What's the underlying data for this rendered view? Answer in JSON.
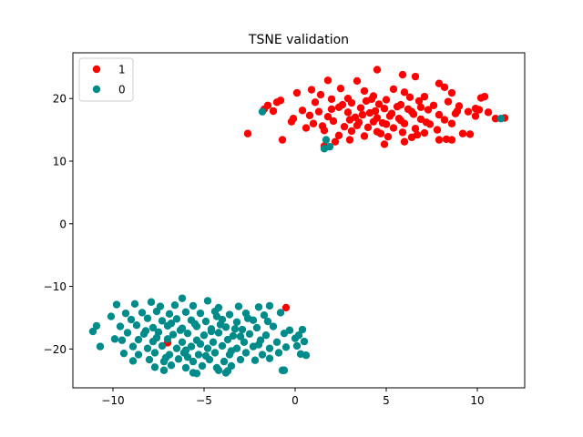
{
  "chart_data": {
    "type": "scatter",
    "title": "TSNE validation",
    "xlabel": "",
    "ylabel": "",
    "xlim": [
      -12.2,
      12.6
    ],
    "ylim": [
      -26.2,
      27.3
    ],
    "xticks": [
      -10,
      -5,
      0,
      5,
      10
    ],
    "yticks": [
      -20,
      -10,
      0,
      10,
      20
    ],
    "grid": false,
    "legend_position": "top-left",
    "series": [
      {
        "name": "1",
        "color": "#ff0000",
        "points": [
          [
            4.5,
            24.6
          ],
          [
            6.6,
            23.5
          ],
          [
            5.9,
            23.8
          ],
          [
            1.8,
            22.9
          ],
          [
            3.4,
            22.8
          ],
          [
            7.9,
            22.4
          ],
          [
            8.2,
            21.8
          ],
          [
            2.5,
            21.6
          ],
          [
            5.4,
            21.5
          ],
          [
            0.9,
            21.4
          ],
          [
            3.8,
            21.2
          ],
          [
            6.0,
            21.0
          ],
          [
            8.6,
            20.9
          ],
          [
            1.4,
            20.6
          ],
          [
            4.3,
            20.4
          ],
          [
            7.1,
            20.3
          ],
          [
            10.4,
            20.3
          ],
          [
            10.2,
            20.1
          ],
          [
            0.1,
            20.9
          ],
          [
            2.0,
            19.9
          ],
          [
            5.0,
            19.8
          ],
          [
            6.8,
            19.6
          ],
          [
            8.4,
            19.5
          ],
          [
            1.1,
            19.4
          ],
          [
            3.1,
            19.3
          ],
          [
            4.6,
            19.1
          ],
          [
            5.8,
            19.0
          ],
          [
            7.6,
            18.9
          ],
          [
            9.0,
            18.8
          ],
          [
            -0.8,
            19.7
          ],
          [
            -1.5,
            18.9
          ],
          [
            -1.0,
            19.4
          ],
          [
            2.4,
            18.6
          ],
          [
            3.6,
            18.5
          ],
          [
            4.9,
            18.4
          ],
          [
            6.2,
            18.3
          ],
          [
            7.3,
            18.2
          ],
          [
            8.9,
            18.0
          ],
          [
            10.1,
            18.2
          ],
          [
            10.6,
            17.8
          ],
          [
            1.3,
            17.9
          ],
          [
            2.9,
            17.8
          ],
          [
            4.1,
            17.7
          ],
          [
            5.3,
            17.6
          ],
          [
            6.5,
            17.5
          ],
          [
            7.9,
            17.4
          ],
          [
            9.5,
            17.9
          ],
          [
            0.4,
            18.1
          ],
          [
            -1.7,
            18.3
          ],
          [
            -1.2,
            18.0
          ],
          [
            11.5,
            16.9
          ],
          [
            11.0,
            16.8
          ],
          [
            9.9,
            17.2
          ],
          [
            1.8,
            17.1
          ],
          [
            3.3,
            17.0
          ],
          [
            4.5,
            16.9
          ],
          [
            5.7,
            16.8
          ],
          [
            6.9,
            16.7
          ],
          [
            8.2,
            16.6
          ],
          [
            -0.1,
            16.8
          ],
          [
            -0.2,
            16.3
          ],
          [
            0.8,
            17.3
          ],
          [
            2.1,
            16.4
          ],
          [
            3.5,
            16.2
          ],
          [
            4.8,
            16.1
          ],
          [
            6.0,
            16.0
          ],
          [
            7.4,
            15.9
          ],
          [
            8.6,
            16.0
          ],
          [
            1.5,
            15.6
          ],
          [
            2.7,
            15.5
          ],
          [
            4.0,
            15.4
          ],
          [
            5.4,
            15.3
          ],
          [
            6.6,
            15.2
          ],
          [
            7.8,
            15.0
          ],
          [
            0.6,
            15.3
          ],
          [
            1.6,
            14.9
          ],
          [
            3.1,
            14.8
          ],
          [
            4.5,
            14.7
          ],
          [
            5.9,
            14.6
          ],
          [
            7.1,
            14.5
          ],
          [
            9.2,
            14.4
          ],
          [
            9.6,
            14.3
          ],
          [
            -2.6,
            14.4
          ],
          [
            2.4,
            14.1
          ],
          [
            3.8,
            14.0
          ],
          [
            5.1,
            13.9
          ],
          [
            6.4,
            13.8
          ],
          [
            8.3,
            13.5
          ],
          [
            7.9,
            13.4
          ],
          [
            8.6,
            13.4
          ],
          [
            2.2,
            13.1
          ],
          [
            3.0,
            13.4
          ],
          [
            4.9,
            12.7
          ],
          [
            6.0,
            13.1
          ],
          [
            1.6,
            12.4
          ],
          [
            2.9,
            20.0
          ],
          [
            3.9,
            19.6
          ],
          [
            5.6,
            18.7
          ],
          [
            4.4,
            18.0
          ],
          [
            5.2,
            17.2
          ],
          [
            6.4,
            17.9
          ],
          [
            3.0,
            16.6
          ],
          [
            3.7,
            17.4
          ],
          [
            4.3,
            16.3
          ],
          [
            5.0,
            15.9
          ],
          [
            5.8,
            16.5
          ],
          [
            6.9,
            18.6
          ],
          [
            4.2,
            19.9
          ],
          [
            2.6,
            19.0
          ],
          [
            6.3,
            20.2
          ],
          [
            7.2,
            16.2
          ],
          [
            8.8,
            17.6
          ],
          [
            9.9,
            18.4
          ],
          [
            2.0,
            18.3
          ],
          [
            3.4,
            15.7
          ],
          [
            4.7,
            14.4
          ],
          [
            6.7,
            14.2
          ],
          [
            1.0,
            16.0
          ],
          [
            -0.7,
            13.4
          ],
          [
            -7.0,
            -19.0
          ],
          [
            -0.5,
            -13.4
          ]
        ]
      },
      {
        "name": "0",
        "color": "#008b8b",
        "points": [
          [
            -1.8,
            17.9
          ],
          [
            1.7,
            13.4
          ],
          [
            1.6,
            12.0
          ],
          [
            1.9,
            12.3
          ],
          [
            11.3,
            16.8
          ],
          [
            -6.2,
            -11.9
          ],
          [
            -4.8,
            -12.3
          ],
          [
            -9.8,
            -12.9
          ],
          [
            -8.8,
            -12.8
          ],
          [
            -7.9,
            -12.5
          ],
          [
            -7.4,
            -13.2
          ],
          [
            -6.6,
            -13.0
          ],
          [
            -5.6,
            -13.1
          ],
          [
            -4.2,
            -13.4
          ],
          [
            -3.1,
            -13.2
          ],
          [
            -2.0,
            -13.3
          ],
          [
            -1.4,
            -13.1
          ],
          [
            -10.1,
            -14.8
          ],
          [
            -9.3,
            -14.3
          ],
          [
            -8.4,
            -14.2
          ],
          [
            -7.6,
            -14.0
          ],
          [
            -6.9,
            -14.4
          ],
          [
            -6.0,
            -14.1
          ],
          [
            -5.2,
            -14.3
          ],
          [
            -4.4,
            -14.0
          ],
          [
            -3.6,
            -14.5
          ],
          [
            -2.7,
            -14.3
          ],
          [
            -1.7,
            -14.6
          ],
          [
            -0.8,
            -14.2
          ],
          [
            -9.0,
            -15.3
          ],
          [
            -8.1,
            -15.1
          ],
          [
            -7.3,
            -15.5
          ],
          [
            -6.5,
            -15.2
          ],
          [
            -5.7,
            -15.4
          ],
          [
            -4.9,
            -15.6
          ],
          [
            -4.0,
            -15.3
          ],
          [
            -3.2,
            -15.7
          ],
          [
            -2.3,
            -15.4
          ],
          [
            -1.5,
            -15.6
          ],
          [
            -10.9,
            -16.3
          ],
          [
            -9.6,
            -16.4
          ],
          [
            -8.7,
            -16.2
          ],
          [
            -7.8,
            -16.6
          ],
          [
            -7.0,
            -16.3
          ],
          [
            -6.2,
            -16.7
          ],
          [
            -5.4,
            -16.4
          ],
          [
            -4.6,
            -16.8
          ],
          [
            -3.8,
            -16.5
          ],
          [
            -2.9,
            -16.9
          ],
          [
            -2.1,
            -16.6
          ],
          [
            -1.2,
            -16.4
          ],
          [
            -0.3,
            -17.0
          ],
          [
            0.4,
            -16.9
          ],
          [
            -11.1,
            -17.2
          ],
          [
            -9.2,
            -17.4
          ],
          [
            -8.3,
            -17.6
          ],
          [
            -7.5,
            -17.3
          ],
          [
            -6.7,
            -17.7
          ],
          [
            -5.9,
            -17.5
          ],
          [
            -5.0,
            -17.8
          ],
          [
            -4.2,
            -17.4
          ],
          [
            -3.4,
            -17.9
          ],
          [
            -2.5,
            -17.6
          ],
          [
            -1.6,
            -17.8
          ],
          [
            -0.6,
            -17.5
          ],
          [
            0.2,
            -17.8
          ],
          [
            -9.9,
            -18.4
          ],
          [
            -9.5,
            -18.6
          ],
          [
            -8.6,
            -18.5
          ],
          [
            -7.8,
            -18.8
          ],
          [
            -7.0,
            -18.4
          ],
          [
            -6.2,
            -18.9
          ],
          [
            -5.4,
            -18.6
          ],
          [
            -4.5,
            -18.9
          ],
          [
            -3.7,
            -18.5
          ],
          [
            -2.8,
            -18.9
          ],
          [
            -1.9,
            -18.6
          ],
          [
            -1.0,
            -18.9
          ],
          [
            0.0,
            -18.3
          ],
          [
            0.5,
            -18.8
          ],
          [
            -10.7,
            -19.6
          ],
          [
            -8.9,
            -19.6
          ],
          [
            -8.1,
            -19.9
          ],
          [
            -7.3,
            -19.5
          ],
          [
            -6.5,
            -19.9
          ],
          [
            -5.7,
            -19.6
          ],
          [
            -4.8,
            -19.9
          ],
          [
            -4.0,
            -19.5
          ],
          [
            -3.2,
            -19.9
          ],
          [
            -2.3,
            -19.6
          ],
          [
            -1.4,
            -19.9
          ],
          [
            -0.5,
            -19.7
          ],
          [
            0.1,
            -19.5
          ],
          [
            -9.4,
            -20.7
          ],
          [
            -8.6,
            -20.9
          ],
          [
            -7.7,
            -20.6
          ],
          [
            -6.9,
            -20.9
          ],
          [
            -6.1,
            -20.6
          ],
          [
            -5.3,
            -20.9
          ],
          [
            -4.4,
            -20.6
          ],
          [
            -3.6,
            -20.9
          ],
          [
            -2.7,
            -20.6
          ],
          [
            -1.8,
            -20.9
          ],
          [
            -0.9,
            -20.6
          ],
          [
            0.3,
            -20.8
          ],
          [
            0.6,
            -21.0
          ],
          [
            -8.9,
            -21.9
          ],
          [
            -8.0,
            -21.7
          ],
          [
            -7.2,
            -22.0
          ],
          [
            -6.4,
            -21.6
          ],
          [
            -5.6,
            -22.0
          ],
          [
            -4.7,
            -21.7
          ],
          [
            -3.9,
            -22.0
          ],
          [
            -3.0,
            -21.7
          ],
          [
            -2.2,
            -21.8
          ],
          [
            -1.4,
            -21.5
          ],
          [
            -7.7,
            -22.9
          ],
          [
            -6.8,
            -22.6
          ],
          [
            -6.0,
            -23.0
          ],
          [
            -5.1,
            -22.7
          ],
          [
            -4.3,
            -23.0
          ],
          [
            -3.5,
            -22.7
          ],
          [
            -7.2,
            -23.4
          ],
          [
            -5.4,
            -23.9
          ],
          [
            -5.6,
            -23.8
          ],
          [
            -3.7,
            -23.5
          ],
          [
            -3.8,
            -23.8
          ],
          [
            -0.6,
            -23.4
          ],
          [
            -0.7,
            -23.4
          ],
          [
            -4.2,
            -23.4
          ],
          [
            -6.3,
            -17.0
          ],
          [
            -4.1,
            -16.1
          ],
          [
            -3.0,
            -18.0
          ],
          [
            -5.2,
            -19.2
          ],
          [
            -6.8,
            -15.9
          ],
          [
            -4.6,
            -17.2
          ],
          [
            -3.5,
            -20.3
          ],
          [
            -5.9,
            -21.3
          ],
          [
            -7.6,
            -18.2
          ],
          [
            -2.6,
            -15.1
          ],
          [
            -4.3,
            -14.8
          ],
          [
            -6.0,
            -20.2
          ],
          [
            -4.9,
            -21.1
          ],
          [
            -3.3,
            -16.8
          ],
          [
            -5.5,
            -16.0
          ],
          [
            -8.2,
            -17.1
          ],
          [
            -2.0,
            -19.3
          ],
          [
            -7.1,
            -21.4
          ]
        ]
      }
    ]
  }
}
